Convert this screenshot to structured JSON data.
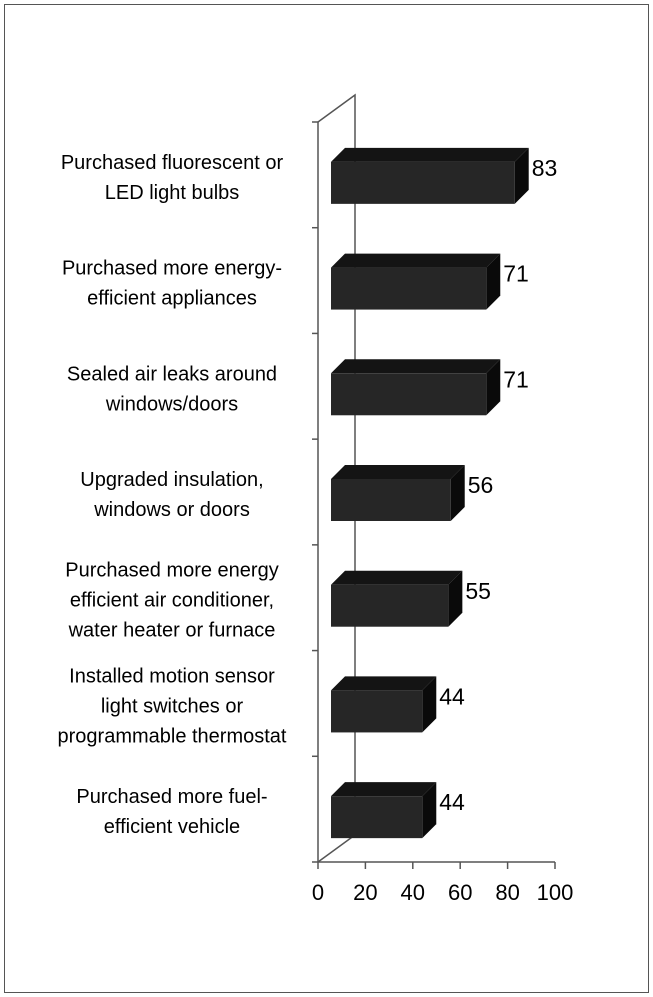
{
  "chart_data": {
    "type": "bar",
    "orientation": "horizontal",
    "style": "3d",
    "categories": [
      [
        "Purchased fluorescent or",
        "LED light bulbs"
      ],
      [
        "Purchased more energy-",
        "efficient appliances"
      ],
      [
        "Sealed air leaks around",
        "windows/doors"
      ],
      [
        "Upgraded insulation,",
        "windows or doors"
      ],
      [
        "Purchased more energy",
        "efficient air conditioner,",
        "water heater or furnace"
      ],
      [
        "Installed motion sensor",
        "light switches or",
        "programmable thermostat"
      ],
      [
        "Purchased more fuel-",
        "efficient vehicle"
      ]
    ],
    "values": [
      83,
      71,
      71,
      56,
      55,
      44,
      44
    ],
    "data_labels": [
      "83",
      "71",
      "71",
      "56",
      "55",
      "44",
      "44"
    ],
    "xlim": [
      0,
      100
    ],
    "xticks": [
      0,
      20,
      40,
      60,
      80,
      100
    ],
    "xtick_labels": [
      "0",
      "20",
      "40",
      "60",
      "80",
      "100"
    ],
    "title": "",
    "xlabel": "",
    "ylabel": "",
    "grid": false,
    "legend": "none",
    "colors": {
      "bar_front": "#262626",
      "bar_top": "#141414",
      "bar_side": "#0a0a0a",
      "axis": "#555555"
    }
  }
}
